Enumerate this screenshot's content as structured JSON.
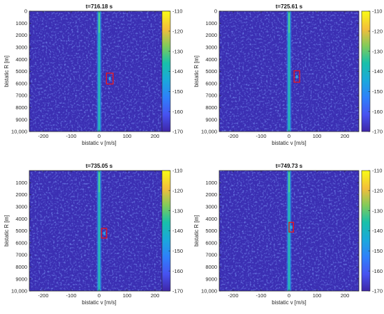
{
  "figure": {
    "xlabel": "bistatic v [m/s]",
    "ylabel": "bistatic R [m]"
  },
  "chart_data": [
    {
      "type": "heatmap",
      "title": "t=716.18 s",
      "xlabel": "bistatic v [m/s]",
      "ylabel": "bistatic R [m]",
      "xlim": [
        -250,
        250
      ],
      "ylim": [
        0,
        10000
      ],
      "y_reversed": true,
      "xticks": [
        -200,
        -100,
        0,
        100,
        200
      ],
      "xtick_labels": [
        "-200",
        "-100",
        "0",
        "100",
        "200"
      ],
      "yticks": [
        0,
        1000,
        2000,
        3000,
        4000,
        5000,
        6000,
        7000,
        8000,
        9000,
        10000
      ],
      "ytick_labels": [
        "0",
        "1000",
        "2000",
        "3000",
        "4000",
        "5000",
        "6000",
        "7000",
        "8000",
        "9000",
        "10,000"
      ],
      "colorbar": {
        "range": [
          -170,
          -110
        ],
        "ticks": [
          -110,
          -120,
          -130,
          -140,
          -150,
          -160,
          -170
        ],
        "tick_labels": [
          "-110",
          "-120",
          "-130",
          "-140",
          "-150",
          "-160",
          "-170"
        ]
      },
      "zero_doppler_ridge": {
        "v": 0,
        "level": -135
      },
      "background_level": -165,
      "target": {
        "v": 38,
        "R": 5600,
        "level": -145,
        "box": {
          "v_min": 26,
          "v_max": 50,
          "R_min": 5150,
          "R_max": 6050
        }
      }
    },
    {
      "type": "heatmap",
      "title": "t=725.61 s",
      "xlabel": "bistatic v [m/s]",
      "ylabel": "bistatic R [m]",
      "xlim": [
        -250,
        250
      ],
      "ylim": [
        0,
        10000
      ],
      "y_reversed": true,
      "xticks": [
        -200,
        -100,
        0,
        100,
        200
      ],
      "xtick_labels": [
        "-200",
        "-100",
        "0",
        "100",
        "200"
      ],
      "yticks": [
        0,
        1000,
        2000,
        3000,
        4000,
        5000,
        6000,
        7000,
        8000,
        9000,
        10000
      ],
      "ytick_labels": [
        "0",
        "1000",
        "2000",
        "3000",
        "4000",
        "5000",
        "6000",
        "7000",
        "8000",
        "9000",
        "10,000"
      ],
      "colorbar": {
        "range": [
          -170,
          -110
        ],
        "ticks": [
          -110,
          -120,
          -130,
          -140,
          -150,
          -160,
          -170
        ],
        "tick_labels": [
          "-110",
          "-120",
          "-130",
          "-140",
          "-150",
          "-160",
          "-170"
        ]
      },
      "zero_doppler_ridge": {
        "v": 0,
        "level": -135
      },
      "background_level": -165,
      "target": {
        "v": 28,
        "R": 5450,
        "level": -145,
        "box": {
          "v_min": 18,
          "v_max": 38,
          "R_min": 4950,
          "R_max": 5900
        }
      }
    },
    {
      "type": "heatmap",
      "title": "t=735.05 s",
      "xlabel": "bistatic v [m/s]",
      "ylabel": "bistatic R [m]",
      "xlim": [
        -250,
        250
      ],
      "ylim": [
        0,
        10000
      ],
      "y_reversed": true,
      "xticks": [
        -200,
        -100,
        0,
        100,
        200
      ],
      "xtick_labels": [
        "-200",
        "-100",
        "0",
        "100",
        "200"
      ],
      "yticks": [
        1000,
        2000,
        3000,
        4000,
        5000,
        6000,
        7000,
        8000,
        9000,
        10000
      ],
      "ytick_labels": [
        "1000",
        "2000",
        "3000",
        "4000",
        "5000",
        "6000",
        "7000",
        "8000",
        "9000",
        "10,000"
      ],
      "colorbar": {
        "range": [
          -170,
          -110
        ],
        "ticks": [
          -110,
          -120,
          -130,
          -140,
          -150,
          -160,
          -170
        ],
        "tick_labels": [
          "-110",
          "-120",
          "-130",
          "-140",
          "-150",
          "-160",
          "-170"
        ]
      },
      "zero_doppler_ridge": {
        "v": 0,
        "level": -135
      },
      "background_level": -165,
      "target": {
        "v": 18,
        "R": 5200,
        "level": -145,
        "box": {
          "v_min": 8,
          "v_max": 27,
          "R_min": 4800,
          "R_max": 5600
        }
      }
    },
    {
      "type": "heatmap",
      "title": "t=749.73 s",
      "xlabel": "bistatic v [m/s]",
      "ylabel": "bistatic R [m]",
      "xlim": [
        -250,
        250
      ],
      "ylim": [
        0,
        10000
      ],
      "y_reversed": true,
      "xticks": [
        -200,
        -100,
        0,
        100,
        200
      ],
      "xtick_labels": [
        "-200",
        "-100",
        "0",
        "100",
        "200"
      ],
      "yticks": [
        1000,
        2000,
        3000,
        4000,
        5000,
        6000,
        7000,
        8000,
        9000,
        10000
      ],
      "ytick_labels": [
        "1000",
        "2000",
        "3000",
        "4000",
        "5000",
        "6000",
        "7000",
        "8000",
        "9000",
        "10,000"
      ],
      "colorbar": {
        "range": [
          -170,
          -110
        ],
        "ticks": [
          -110,
          -120,
          -130,
          -140,
          -150,
          -160,
          -170
        ],
        "tick_labels": [
          "-110",
          "-120",
          "-130",
          "-140",
          "-150",
          "-160",
          "-170"
        ]
      },
      "zero_doppler_ridge": {
        "v": 0,
        "level": -135
      },
      "background_level": -165,
      "target": {
        "v": 8,
        "R": 4700,
        "level": -145,
        "box": {
          "v_min": 0,
          "v_max": 16,
          "R_min": 4300,
          "R_max": 5100
        }
      }
    }
  ]
}
